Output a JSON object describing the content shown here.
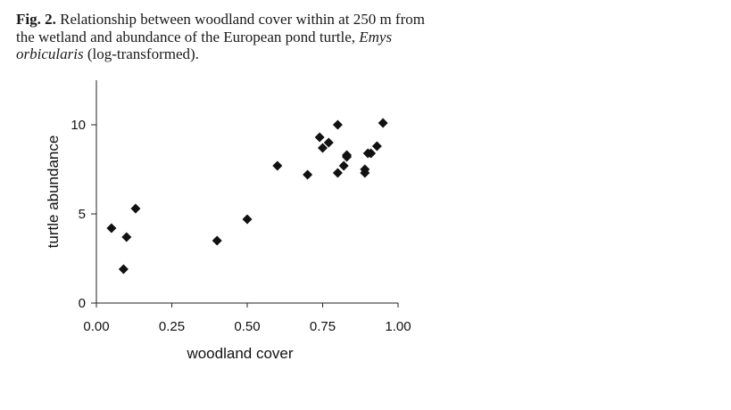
{
  "caption": {
    "fig_label": "Fig. 2.",
    "text_before_species": "Relationship between woodland cover within at 250 m from the wetland and abundance of the European pond turtle,",
    "species": "Emys orbicularis",
    "text_after_species": "(log-transformed)."
  },
  "chart_data": {
    "type": "scatter",
    "title": "",
    "xlabel": "woodland cover",
    "ylabel": "turtle abundance",
    "xlim": [
      0,
      1
    ],
    "ylim": [
      0,
      12.5
    ],
    "x_ticks": [
      0,
      0.25,
      0.5,
      0.75,
      1
    ],
    "x_tick_labels": [
      "0.00",
      "0.25",
      "0.50",
      "0.75",
      "1.00"
    ],
    "y_ticks": [
      0,
      5,
      10
    ],
    "y_tick_labels": [
      "0",
      "5",
      "10"
    ],
    "grid": false,
    "marker": "diamond",
    "marker_color": "#111111",
    "points": [
      {
        "x": 0.05,
        "y": 4.2
      },
      {
        "x": 0.09,
        "y": 1.9
      },
      {
        "x": 0.1,
        "y": 3.7
      },
      {
        "x": 0.13,
        "y": 5.3
      },
      {
        "x": 0.4,
        "y": 3.5
      },
      {
        "x": 0.5,
        "y": 4.7
      },
      {
        "x": 0.6,
        "y": 7.7
      },
      {
        "x": 0.7,
        "y": 7.2
      },
      {
        "x": 0.74,
        "y": 9.3
      },
      {
        "x": 0.75,
        "y": 8.7
      },
      {
        "x": 0.77,
        "y": 9.0
      },
      {
        "x": 0.8,
        "y": 10.0
      },
      {
        "x": 0.8,
        "y": 7.3
      },
      {
        "x": 0.82,
        "y": 7.7
      },
      {
        "x": 0.83,
        "y": 8.2
      },
      {
        "x": 0.83,
        "y": 8.3
      },
      {
        "x": 0.89,
        "y": 7.5
      },
      {
        "x": 0.89,
        "y": 7.3
      },
      {
        "x": 0.9,
        "y": 8.4
      },
      {
        "x": 0.91,
        "y": 8.4
      },
      {
        "x": 0.93,
        "y": 8.8
      },
      {
        "x": 0.95,
        "y": 10.1
      }
    ]
  }
}
